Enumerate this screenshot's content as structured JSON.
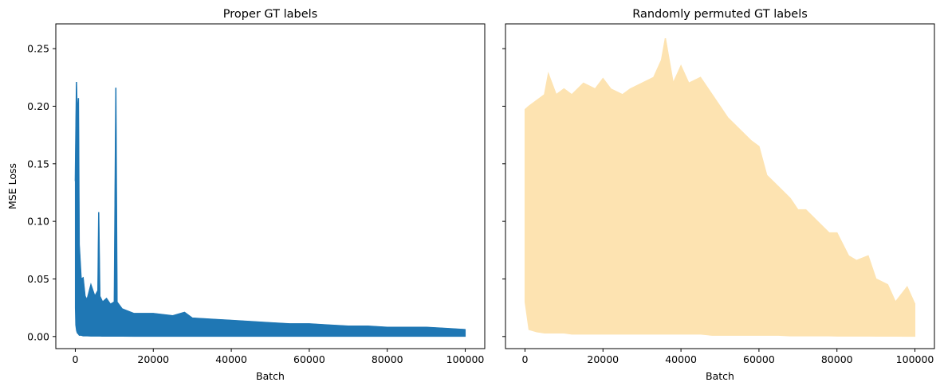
{
  "chart_data": [
    {
      "type": "line",
      "title": "Proper GT labels",
      "xlabel": "Batch",
      "ylabel": "MSE Loss",
      "xlim": [
        -5000,
        105000
      ],
      "ylim": [
        -0.0105,
        0.2715
      ],
      "xticks": [
        0,
        20000,
        40000,
        60000,
        80000,
        100000
      ],
      "yticks": [
        0.0,
        0.05,
        0.1,
        0.15,
        0.2,
        0.25
      ],
      "ytick_labels": [
        "0.00",
        "0.05",
        "0.10",
        "0.15",
        "0.20",
        "0.25"
      ],
      "grid": false,
      "color": "#1f77b4",
      "opacity": 1,
      "series": [
        {
          "x": [
            0,
            100,
            300,
            500,
            800,
            1000,
            1500,
            2000,
            2500,
            3000,
            4000,
            5000,
            5800,
            6000,
            6300,
            7000,
            8000,
            9000,
            10000,
            10400,
            10700,
            12000,
            15000,
            20000,
            25000,
            28000,
            30000,
            35000,
            40000,
            45000,
            50000,
            55000,
            60000,
            65000,
            70000,
            75000,
            80000,
            85000,
            90000,
            95000,
            100000
          ],
          "upper": [
            0.135,
            0.165,
            0.221,
            0.19,
            0.207,
            0.08,
            0.05,
            0.051,
            0.035,
            0.032,
            0.045,
            0.035,
            0.04,
            0.108,
            0.035,
            0.03,
            0.033,
            0.028,
            0.03,
            0.216,
            0.03,
            0.024,
            0.02,
            0.02,
            0.018,
            0.021,
            0.016,
            0.015,
            0.014,
            0.013,
            0.012,
            0.011,
            0.011,
            0.01,
            0.009,
            0.009,
            0.008,
            0.008,
            0.008,
            0.007,
            0.006
          ],
          "lower": [
            0.025,
            0.01,
            0.005,
            0.003,
            0.002,
            0.001,
            0.001,
            0.0005,
            0.0005,
            0.0005,
            0.0003,
            0.0003,
            0.0003,
            0.0003,
            0.0003,
            0.0002,
            0.0002,
            0.0002,
            0.0002,
            0.0002,
            0.0002,
            0.0002,
            0.0001,
            0.0001,
            0.0001,
            0.0001,
            0.0001,
            0.0001,
            0.0001,
            0.0001,
            0.0001,
            0.0001,
            0.0001,
            0.0001,
            0.0001,
            0.0001,
            0.0001,
            0.0001,
            0.0001,
            0.0001,
            0.0001
          ]
        }
      ]
    },
    {
      "type": "line",
      "title": "Randomly permuted GT labels",
      "xlabel": "Batch",
      "ylabel": "",
      "xlim": [
        -5000,
        105000
      ],
      "ylim": [
        -0.0105,
        0.2715
      ],
      "xticks": [
        0,
        20000,
        40000,
        60000,
        80000,
        100000
      ],
      "yticks": [
        0.0,
        0.05,
        0.1,
        0.15,
        0.2,
        0.25
      ],
      "ytick_labels": [],
      "grid": false,
      "color": "#fde3b1",
      "opacity": 1,
      "series": [
        {
          "x": [
            0,
            1000,
            3000,
            5000,
            6000,
            8000,
            10000,
            12000,
            15000,
            18000,
            20000,
            22000,
            25000,
            27000,
            30000,
            33000,
            35000,
            36000,
            38000,
            40000,
            42000,
            45000,
            48000,
            50000,
            52000,
            55000,
            58000,
            60000,
            62000,
            65000,
            68000,
            70000,
            72000,
            75000,
            78000,
            80000,
            83000,
            85000,
            88000,
            90000,
            93000,
            95000,
            98000,
            100000
          ],
          "upper": [
            0.197,
            0.2,
            0.205,
            0.21,
            0.228,
            0.21,
            0.215,
            0.21,
            0.22,
            0.215,
            0.224,
            0.215,
            0.21,
            0.215,
            0.22,
            0.225,
            0.24,
            0.259,
            0.22,
            0.235,
            0.22,
            0.225,
            0.21,
            0.2,
            0.19,
            0.18,
            0.17,
            0.165,
            0.14,
            0.13,
            0.12,
            0.11,
            0.11,
            0.1,
            0.09,
            0.09,
            0.07,
            0.066,
            0.07,
            0.05,
            0.045,
            0.03,
            0.043,
            0.028
          ],
          "lower": [
            0.03,
            0.006,
            0.004,
            0.003,
            0.003,
            0.003,
            0.003,
            0.002,
            0.002,
            0.002,
            0.002,
            0.002,
            0.002,
            0.002,
            0.002,
            0.002,
            0.002,
            0.002,
            0.002,
            0.002,
            0.002,
            0.002,
            0.001,
            0.001,
            0.001,
            0.001,
            0.001,
            0.001,
            0.001,
            0.001,
            0.0005,
            0.0005,
            0.0005,
            0.0005,
            0.0005,
            0.0003,
            0.0003,
            0.0003,
            0.0003,
            0.0002,
            0.0002,
            0.0002,
            0.0001,
            0.0001
          ]
        }
      ]
    }
  ]
}
